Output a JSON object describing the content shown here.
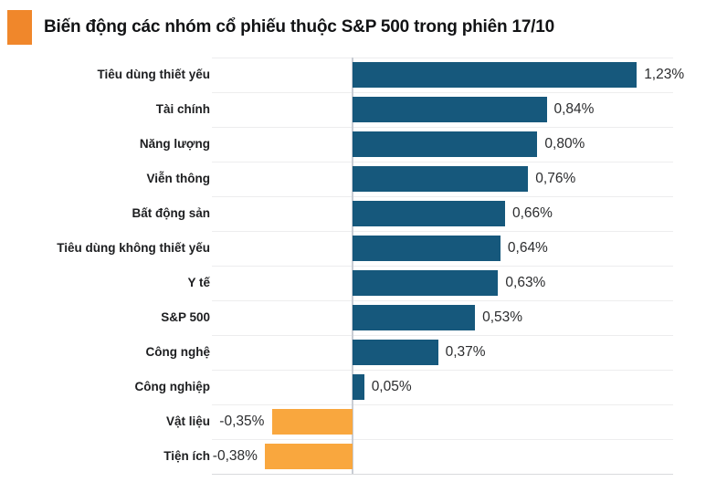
{
  "header": {
    "title": "Biến động các nhóm cổ phiếu thuộc S&P 500 trong phiên 17/10",
    "accent_color": "#F0872B"
  },
  "chart_data": {
    "type": "bar",
    "orientation": "horizontal",
    "title": "Biến động các nhóm cổ phiếu thuộc S&P 500 trong phiên 17/10",
    "categories": [
      "Tiêu dùng thiết yếu",
      "Tài chính",
      "Năng lượng",
      "Viễn thông",
      "Bất động sản",
      "Tiêu dùng không thiết yếu",
      "Y tế",
      "S&P 500",
      "Công nghệ",
      "Công nghiệp",
      "Vật liệu",
      "Tiện ích"
    ],
    "values": [
      1.23,
      0.84,
      0.8,
      0.76,
      0.66,
      0.64,
      0.63,
      0.53,
      0.37,
      0.05,
      -0.35,
      -0.38
    ],
    "value_labels": [
      "1,23%",
      "0,84%",
      "0,80%",
      "0,76%",
      "0,66%",
      "0,64%",
      "0,63%",
      "0,53%",
      "0,37%",
      "0,05%",
      "-0,35%",
      "-0,38%"
    ],
    "positive_color": "#16587C",
    "negative_color": "#F9A73E",
    "unit": "%",
    "decimal_separator": ",",
    "axis_range": [
      -0.6,
      1.4
    ],
    "grid": true,
    "zero_line": true,
    "legend": "none",
    "xlabel": "",
    "ylabel": ""
  }
}
